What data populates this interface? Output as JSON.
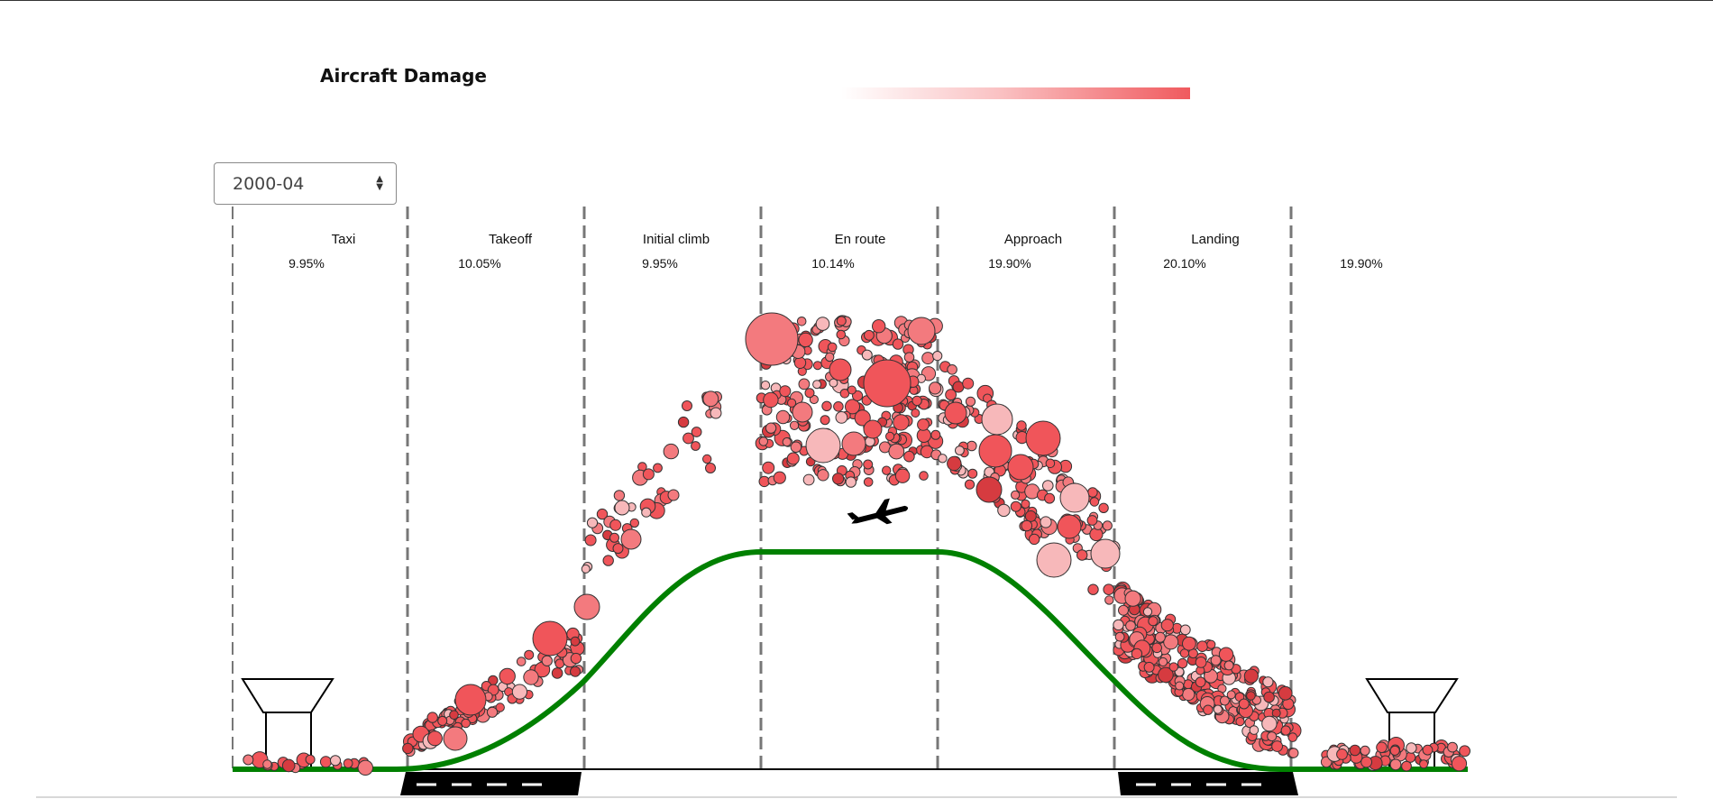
{
  "page": {
    "title": "Aircraft Damage"
  },
  "controls": {
    "period_value": "2000-04"
  },
  "colors": {
    "bubble_fill": "#f0555a",
    "bubble_light": "#f7b8ba",
    "bubble_stroke": "#333333",
    "altitude_line": "#008000",
    "divider": "#777777"
  },
  "chart_data": {
    "type": "scatter",
    "title": "Aircraft Damage",
    "phases": [
      {
        "name": "Taxi",
        "percent": "9.95%"
      },
      {
        "name": "Takeoff",
        "percent": "10.05%"
      },
      {
        "name": "Initial climb",
        "percent": "9.95%"
      },
      {
        "name": "En route",
        "percent": "10.14%"
      },
      {
        "name": "Approach",
        "percent": "19.90%"
      },
      {
        "name": "Landing",
        "percent": "20.10%"
      },
      {
        "name": "",
        "percent": "19.90%"
      }
    ],
    "encoding": {
      "x": "flight phase",
      "y": "altitude (relative)",
      "size": "damage severity",
      "color": "intensity (light to dark red)"
    },
    "legend": "top-center gradient"
  }
}
